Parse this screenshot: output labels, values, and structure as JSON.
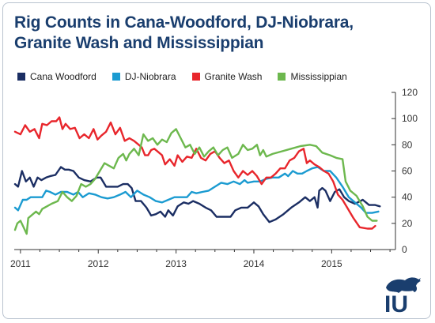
{
  "chart_data": {
    "type": "line",
    "title": "Rig Counts in Cana-Woodford, DJ-Niobrara, Granite Wash and Mississippian",
    "xlabel": "",
    "ylabel": "",
    "x_ticks": [
      2011,
      2012,
      2013,
      2014,
      2015
    ],
    "xlim": [
      2010.92,
      2015.82
    ],
    "ylim": [
      0,
      120
    ],
    "y_ticks": [
      0,
      20,
      40,
      60,
      80,
      100,
      120
    ],
    "y_axis_side": "right",
    "grid": "none",
    "legend": "top",
    "series": [
      {
        "name": "Cana Woodford",
        "color": "#1b2e63",
        "points": [
          [
            2010.93,
            50
          ],
          [
            2010.97,
            48
          ],
          [
            2011.02,
            60
          ],
          [
            2011.07,
            52
          ],
          [
            2011.12,
            55
          ],
          [
            2011.17,
            48
          ],
          [
            2011.22,
            55
          ],
          [
            2011.27,
            53
          ],
          [
            2011.33,
            55
          ],
          [
            2011.38,
            56
          ],
          [
            2011.45,
            57
          ],
          [
            2011.52,
            63
          ],
          [
            2011.57,
            61
          ],
          [
            2011.62,
            61
          ],
          [
            2011.68,
            60
          ],
          [
            2011.75,
            55
          ],
          [
            2011.82,
            53
          ],
          [
            2011.9,
            52
          ],
          [
            2011.98,
            55
          ],
          [
            2012.03,
            55
          ],
          [
            2012.1,
            48
          ],
          [
            2012.17,
            48
          ],
          [
            2012.25,
            48
          ],
          [
            2012.32,
            50
          ],
          [
            2012.38,
            50
          ],
          [
            2012.43,
            47
          ],
          [
            2012.48,
            37
          ],
          [
            2012.55,
            37
          ],
          [
            2012.62,
            32
          ],
          [
            2012.68,
            26
          ],
          [
            2012.74,
            27
          ],
          [
            2012.8,
            29
          ],
          [
            2012.86,
            25
          ],
          [
            2012.9,
            30
          ],
          [
            2012.96,
            26
          ],
          [
            2013.02,
            33
          ],
          [
            2013.1,
            36
          ],
          [
            2013.16,
            35
          ],
          [
            2013.22,
            37
          ],
          [
            2013.3,
            35
          ],
          [
            2013.38,
            32
          ],
          [
            2013.45,
            30
          ],
          [
            2013.52,
            25
          ],
          [
            2013.62,
            25
          ],
          [
            2013.7,
            25
          ],
          [
            2013.76,
            30
          ],
          [
            2013.84,
            32
          ],
          [
            2013.92,
            32
          ],
          [
            2014.0,
            36
          ],
          [
            2014.06,
            33
          ],
          [
            2014.12,
            27
          ],
          [
            2014.2,
            21
          ],
          [
            2014.28,
            23
          ],
          [
            2014.38,
            27
          ],
          [
            2014.48,
            32
          ],
          [
            2014.58,
            36
          ],
          [
            2014.66,
            40
          ],
          [
            2014.72,
            37
          ],
          [
            2014.78,
            40
          ],
          [
            2014.82,
            32
          ],
          [
            2014.84,
            45
          ],
          [
            2014.88,
            47
          ],
          [
            2014.92,
            45
          ],
          [
            2014.98,
            37
          ],
          [
            2015.04,
            44
          ],
          [
            2015.1,
            46
          ],
          [
            2015.16,
            40
          ],
          [
            2015.22,
            37
          ],
          [
            2015.3,
            35
          ],
          [
            2015.4,
            38
          ],
          [
            2015.48,
            34
          ],
          [
            2015.56,
            34
          ],
          [
            2015.62,
            33
          ]
        ]
      },
      {
        "name": "DJ-Niobrara",
        "color": "#1b9bd1",
        "points": [
          [
            2010.93,
            32
          ],
          [
            2010.97,
            30
          ],
          [
            2011.03,
            38
          ],
          [
            2011.08,
            38
          ],
          [
            2011.13,
            40
          ],
          [
            2011.2,
            40
          ],
          [
            2011.28,
            40
          ],
          [
            2011.33,
            45
          ],
          [
            2011.38,
            44
          ],
          [
            2011.45,
            42
          ],
          [
            2011.52,
            44
          ],
          [
            2011.6,
            44
          ],
          [
            2011.68,
            42
          ],
          [
            2011.74,
            44
          ],
          [
            2011.8,
            40
          ],
          [
            2011.88,
            43
          ],
          [
            2011.96,
            42
          ],
          [
            2012.04,
            40
          ],
          [
            2012.12,
            39
          ],
          [
            2012.2,
            40
          ],
          [
            2012.28,
            42
          ],
          [
            2012.35,
            44
          ],
          [
            2012.42,
            40
          ],
          [
            2012.5,
            45
          ],
          [
            2012.58,
            42
          ],
          [
            2012.66,
            40
          ],
          [
            2012.74,
            37
          ],
          [
            2012.82,
            36
          ],
          [
            2012.9,
            38
          ],
          [
            2012.98,
            40
          ],
          [
            2013.06,
            40
          ],
          [
            2013.14,
            40
          ],
          [
            2013.2,
            44
          ],
          [
            2013.26,
            43
          ],
          [
            2013.34,
            44
          ],
          [
            2013.42,
            45
          ],
          [
            2013.5,
            48
          ],
          [
            2013.58,
            51
          ],
          [
            2013.66,
            50
          ],
          [
            2013.74,
            52
          ],
          [
            2013.82,
            50
          ],
          [
            2013.88,
            53
          ],
          [
            2013.92,
            51
          ],
          [
            2014.0,
            52
          ],
          [
            2014.08,
            52
          ],
          [
            2014.16,
            54
          ],
          [
            2014.24,
            55
          ],
          [
            2014.32,
            55
          ],
          [
            2014.4,
            58
          ],
          [
            2014.44,
            56
          ],
          [
            2014.5,
            60
          ],
          [
            2014.56,
            58
          ],
          [
            2014.62,
            58
          ],
          [
            2014.68,
            60
          ],
          [
            2014.75,
            62
          ],
          [
            2014.82,
            63
          ],
          [
            2014.9,
            60
          ],
          [
            2014.98,
            60
          ],
          [
            2015.06,
            55
          ],
          [
            2015.14,
            48
          ],
          [
            2015.22,
            40
          ],
          [
            2015.3,
            36
          ],
          [
            2015.38,
            32
          ],
          [
            2015.44,
            28
          ],
          [
            2015.52,
            28
          ],
          [
            2015.6,
            29
          ]
        ]
      },
      {
        "name": "Granite Wash",
        "color": "#e8262c",
        "points": [
          [
            2010.93,
            90
          ],
          [
            2011.0,
            88
          ],
          [
            2011.06,
            95
          ],
          [
            2011.12,
            90
          ],
          [
            2011.18,
            92
          ],
          [
            2011.24,
            85
          ],
          [
            2011.28,
            96
          ],
          [
            2011.34,
            95
          ],
          [
            2011.4,
            98
          ],
          [
            2011.46,
            98
          ],
          [
            2011.5,
            101
          ],
          [
            2011.54,
            92
          ],
          [
            2011.58,
            96
          ],
          [
            2011.64,
            92
          ],
          [
            2011.7,
            93
          ],
          [
            2011.76,
            85
          ],
          [
            2011.82,
            88
          ],
          [
            2011.88,
            85
          ],
          [
            2011.94,
            92
          ],
          [
            2011.99,
            84
          ],
          [
            2012.04,
            87
          ],
          [
            2012.1,
            90
          ],
          [
            2012.16,
            97
          ],
          [
            2012.22,
            88
          ],
          [
            2012.28,
            93
          ],
          [
            2012.34,
            83
          ],
          [
            2012.4,
            85
          ],
          [
            2012.46,
            83
          ],
          [
            2012.52,
            80
          ],
          [
            2012.56,
            78
          ],
          [
            2012.6,
            72
          ],
          [
            2012.64,
            72
          ],
          [
            2012.68,
            76
          ],
          [
            2012.72,
            77
          ],
          [
            2012.76,
            75
          ],
          [
            2012.82,
            72
          ],
          [
            2012.86,
            65
          ],
          [
            2012.92,
            69
          ],
          [
            2012.98,
            64
          ],
          [
            2013.02,
            72
          ],
          [
            2013.08,
            67
          ],
          [
            2013.14,
            71
          ],
          [
            2013.2,
            70
          ],
          [
            2013.26,
            77
          ],
          [
            2013.32,
            70
          ],
          [
            2013.38,
            68
          ],
          [
            2013.44,
            73
          ],
          [
            2013.5,
            75
          ],
          [
            2013.56,
            70
          ],
          [
            2013.62,
            66
          ],
          [
            2013.68,
            68
          ],
          [
            2013.74,
            60
          ],
          [
            2013.8,
            55
          ],
          [
            2013.86,
            60
          ],
          [
            2013.92,
            57
          ],
          [
            2013.98,
            60
          ],
          [
            2014.04,
            56
          ],
          [
            2014.1,
            50
          ],
          [
            2014.16,
            55
          ],
          [
            2014.22,
            55
          ],
          [
            2014.28,
            58
          ],
          [
            2014.34,
            62
          ],
          [
            2014.4,
            62
          ],
          [
            2014.46,
            68
          ],
          [
            2014.52,
            70
          ],
          [
            2014.58,
            75
          ],
          [
            2014.64,
            77
          ],
          [
            2014.68,
            66
          ],
          [
            2014.72,
            68
          ],
          [
            2014.78,
            65
          ],
          [
            2014.84,
            63
          ],
          [
            2014.9,
            60
          ],
          [
            2014.96,
            58
          ],
          [
            2015.02,
            52
          ],
          [
            2015.08,
            42
          ],
          [
            2015.14,
            38
          ],
          [
            2015.2,
            32
          ],
          [
            2015.28,
            24
          ],
          [
            2015.36,
            17
          ],
          [
            2015.46,
            16
          ],
          [
            2015.52,
            16
          ],
          [
            2015.56,
            18
          ]
        ]
      },
      {
        "name": "Mississippian",
        "color": "#6db84e",
        "points": [
          [
            2010.93,
            15
          ],
          [
            2010.96,
            20
          ],
          [
            2011.0,
            22
          ],
          [
            2011.04,
            17
          ],
          [
            2011.08,
            12
          ],
          [
            2011.1,
            24
          ],
          [
            2011.16,
            27
          ],
          [
            2011.2,
            29
          ],
          [
            2011.24,
            27
          ],
          [
            2011.28,
            31
          ],
          [
            2011.34,
            33
          ],
          [
            2011.4,
            35
          ],
          [
            2011.48,
            37
          ],
          [
            2011.54,
            44
          ],
          [
            2011.6,
            40
          ],
          [
            2011.66,
            37
          ],
          [
            2011.72,
            41
          ],
          [
            2011.78,
            50
          ],
          [
            2011.84,
            48
          ],
          [
            2011.9,
            50
          ],
          [
            2011.96,
            54
          ],
          [
            2012.02,
            60
          ],
          [
            2012.08,
            66
          ],
          [
            2012.14,
            64
          ],
          [
            2012.2,
            62
          ],
          [
            2012.26,
            70
          ],
          [
            2012.32,
            73
          ],
          [
            2012.36,
            68
          ],
          [
            2012.4,
            73
          ],
          [
            2012.46,
            77
          ],
          [
            2012.52,
            72
          ],
          [
            2012.58,
            88
          ],
          [
            2012.64,
            83
          ],
          [
            2012.7,
            85
          ],
          [
            2012.76,
            80
          ],
          [
            2012.82,
            84
          ],
          [
            2012.88,
            82
          ],
          [
            2012.94,
            89
          ],
          [
            2013.0,
            92
          ],
          [
            2013.06,
            85
          ],
          [
            2013.12,
            78
          ],
          [
            2013.18,
            80
          ],
          [
            2013.24,
            73
          ],
          [
            2013.3,
            78
          ],
          [
            2013.36,
            71
          ],
          [
            2013.42,
            75
          ],
          [
            2013.48,
            78
          ],
          [
            2013.54,
            72
          ],
          [
            2013.6,
            76
          ],
          [
            2013.66,
            78
          ],
          [
            2013.72,
            70
          ],
          [
            2013.8,
            73
          ],
          [
            2013.86,
            80
          ],
          [
            2013.92,
            76
          ],
          [
            2013.98,
            77
          ],
          [
            2014.04,
            80
          ],
          [
            2014.08,
            72
          ],
          [
            2014.12,
            76
          ],
          [
            2014.16,
            71
          ],
          [
            2014.24,
            73
          ],
          [
            2014.36,
            75
          ],
          [
            2014.48,
            77
          ],
          [
            2014.6,
            79
          ],
          [
            2014.72,
            80
          ],
          [
            2014.8,
            79
          ],
          [
            2014.88,
            74
          ],
          [
            2014.98,
            72
          ],
          [
            2015.06,
            70
          ],
          [
            2015.14,
            69
          ],
          [
            2015.18,
            52
          ],
          [
            2015.24,
            45
          ],
          [
            2015.32,
            41
          ],
          [
            2015.4,
            33
          ],
          [
            2015.46,
            25
          ],
          [
            2015.52,
            22
          ],
          [
            2015.58,
            22
          ]
        ]
      }
    ]
  },
  "logo": {
    "letters": "IU",
    "color": "#1a3e6e"
  }
}
